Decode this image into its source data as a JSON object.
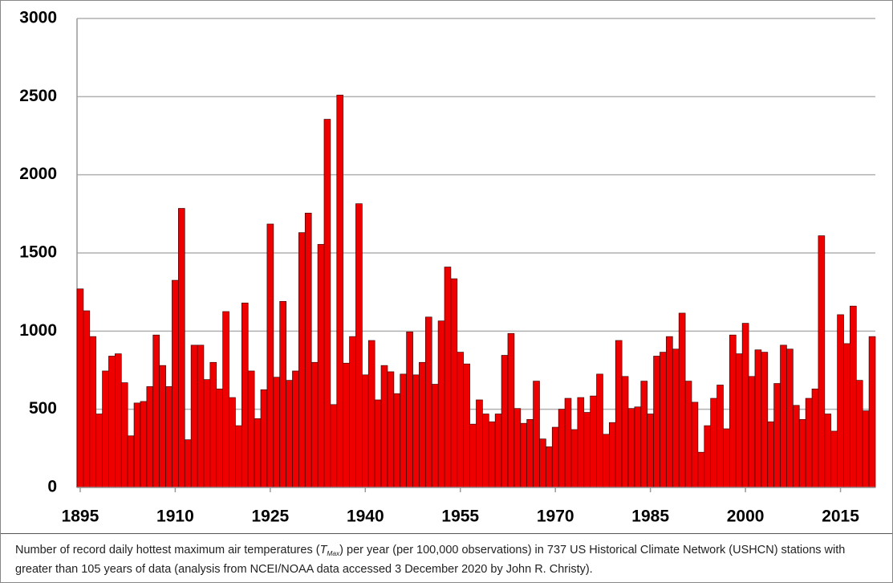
{
  "chart_data": {
    "type": "bar",
    "x": [
      1895,
      1896,
      1897,
      1898,
      1899,
      1900,
      1901,
      1902,
      1903,
      1904,
      1905,
      1906,
      1907,
      1908,
      1909,
      1910,
      1911,
      1912,
      1913,
      1914,
      1915,
      1916,
      1917,
      1918,
      1919,
      1920,
      1921,
      1922,
      1923,
      1924,
      1925,
      1926,
      1927,
      1928,
      1929,
      1930,
      1931,
      1932,
      1933,
      1934,
      1935,
      1936,
      1937,
      1938,
      1939,
      1940,
      1941,
      1942,
      1943,
      1944,
      1945,
      1946,
      1947,
      1948,
      1949,
      1950,
      1951,
      1952,
      1953,
      1954,
      1955,
      1956,
      1957,
      1958,
      1959,
      1960,
      1961,
      1962,
      1963,
      1964,
      1965,
      1966,
      1967,
      1968,
      1969,
      1970,
      1971,
      1972,
      1973,
      1974,
      1975,
      1976,
      1977,
      1978,
      1979,
      1980,
      1981,
      1982,
      1983,
      1984,
      1985,
      1986,
      1987,
      1988,
      1989,
      1990,
      1991,
      1992,
      1993,
      1994,
      1995,
      1996,
      1997,
      1998,
      1999,
      2000,
      2001,
      2002,
      2003,
      2004,
      2005,
      2006,
      2007,
      2008,
      2009,
      2010,
      2011,
      2012,
      2013,
      2014,
      2015,
      2016,
      2017,
      2018,
      2019,
      2020
    ],
    "values": [
      1270,
      1130,
      965,
      470,
      745,
      840,
      855,
      670,
      330,
      540,
      550,
      645,
      975,
      780,
      645,
      1325,
      1785,
      305,
      910,
      910,
      690,
      800,
      630,
      1125,
      575,
      395,
      1180,
      745,
      440,
      625,
      1685,
      705,
      1190,
      685,
      745,
      1630,
      1755,
      800,
      1555,
      2355,
      530,
      2510,
      795,
      965,
      1815,
      720,
      940,
      560,
      780,
      740,
      600,
      725,
      995,
      720,
      800,
      1090,
      660,
      1065,
      1410,
      1335,
      865,
      790,
      405,
      560,
      470,
      420,
      470,
      845,
      985,
      505,
      410,
      435,
      680,
      310,
      260,
      385,
      500,
      570,
      370,
      575,
      480,
      585,
      725,
      340,
      415,
      940,
      710,
      505,
      515,
      680,
      470,
      840,
      865,
      965,
      885,
      1115,
      680,
      545,
      225,
      395,
      570,
      655,
      375,
      975,
      855,
      1050,
      710,
      880,
      865,
      420,
      665,
      910,
      885,
      525,
      435,
      570,
      630,
      1610,
      470,
      360,
      1105,
      920,
      1160,
      685,
      490,
      965
    ],
    "color": "#ee0000",
    "xlim": [
      1894.5,
      2020.5
    ],
    "xticks": [
      1895,
      1910,
      1925,
      1940,
      1955,
      1970,
      1985,
      2000,
      2015
    ],
    "ylim": [
      0,
      3000
    ],
    "yticks": [
      0,
      500,
      1000,
      1500,
      2000,
      2500,
      3000
    ],
    "grid": true,
    "caption": {
      "before": "Number of record daily hottest maximum air temperatures (",
      "symbol": "T",
      "subscript": "Max",
      "after": ") per year (per 100,000 observations) in 737 US Historical Climate Network (USHCN) stations with greater than 105 years of data (analysis from NCEI/NOAA data accessed 3 December 2020 by John R. Christy)."
    }
  }
}
